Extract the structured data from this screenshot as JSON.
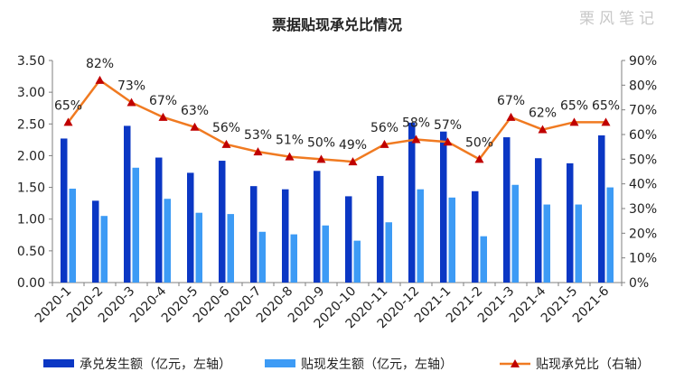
{
  "watermark": "栗风笔记",
  "chart_data": {
    "type": "bar",
    "title": "票据贴现承兑比情况",
    "categories": [
      "2020-1",
      "2020-2",
      "2020-3",
      "2020-4",
      "2020-5",
      "2020-6",
      "2020-7",
      "2020-8",
      "2020-9",
      "2020-10",
      "2020-11",
      "2020-12",
      "2021-1",
      "2021-2",
      "2021-3",
      "2021-4",
      "2021-5",
      "2021-6"
    ],
    "series": [
      {
        "name": "承兑发生额（亿元，左轴）",
        "kind": "bar",
        "axis": "left",
        "color": "#0b37c4",
        "values": [
          2.27,
          1.29,
          2.47,
          1.97,
          1.73,
          1.92,
          1.52,
          1.47,
          1.76,
          1.36,
          1.68,
          2.52,
          2.38,
          1.44,
          2.29,
          1.96,
          1.88,
          2.32
        ]
      },
      {
        "name": "贴现发生额（亿元，左轴）",
        "kind": "bar",
        "axis": "left",
        "color": "#3d9bf5",
        "values": [
          1.48,
          1.05,
          1.81,
          1.32,
          1.1,
          1.08,
          0.8,
          0.76,
          0.9,
          0.66,
          0.95,
          1.47,
          1.34,
          0.73,
          1.54,
          1.23,
          1.23,
          1.5
        ]
      },
      {
        "name": "贴现承兑比（右轴）",
        "kind": "line",
        "axis": "right",
        "color": "#f07a21",
        "marker_color": "#c00000",
        "values": [
          0.65,
          0.82,
          0.73,
          0.67,
          0.63,
          0.56,
          0.53,
          0.51,
          0.5,
          0.49,
          0.56,
          0.58,
          0.57,
          0.5,
          0.67,
          0.62,
          0.65,
          0.65
        ],
        "labels": [
          "65%",
          "82%",
          "73%",
          "67%",
          "63%",
          "56%",
          "53%",
          "51%",
          "50%",
          "49%",
          "56%",
          "58%",
          "57%",
          "50%",
          "67%",
          "62%",
          "65%",
          "65%"
        ]
      }
    ],
    "y_left": {
      "min": 0,
      "max": 3.5,
      "ticks": [
        0,
        0.5,
        1,
        1.5,
        2,
        2.5,
        3,
        3.5
      ],
      "tick_labels": [
        "0.00",
        "0.50",
        "1.00",
        "1.50",
        "2.00",
        "2.50",
        "3.00",
        "3.50"
      ]
    },
    "y_right": {
      "min": 0,
      "max": 0.9,
      "ticks": [
        0,
        0.1,
        0.2,
        0.3,
        0.4,
        0.5,
        0.6,
        0.7,
        0.8,
        0.9
      ],
      "tick_labels": [
        "0%",
        "10%",
        "20%",
        "30%",
        "40%",
        "50%",
        "60%",
        "70%",
        "80%",
        "90%"
      ]
    },
    "grid": false,
    "legend_position": "bottom"
  }
}
